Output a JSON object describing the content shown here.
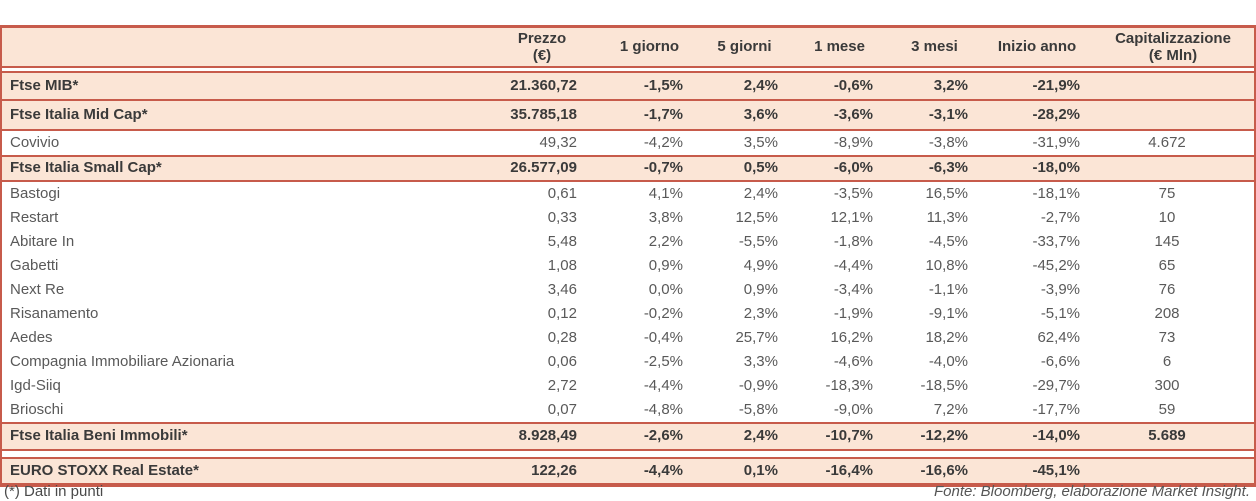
{
  "colors": {
    "accent_red": "#C75B4B",
    "row_highlight": "#FBE5D6",
    "text_dark": "#3A3A3A",
    "text_gray": "#595959"
  },
  "table": {
    "header": {
      "prezzo_line1": "Prezzo",
      "prezzo_line2": "(€)",
      "d1": "1 giorno",
      "d5": "5 giorni",
      "m1": "1 mese",
      "m3": "3 mesi",
      "ytd": "Inizio anno",
      "cap_line1": "Capitalizzazione",
      "cap_line2": "(€ Mln)"
    },
    "rows": [
      {
        "type": "index",
        "name": "Ftse MIB*",
        "prezzo": "21.360,72",
        "d1": "-1,5%",
        "d5": "2,4%",
        "m1": "-0,6%",
        "m3": "3,2%",
        "ytd": "-21,9%",
        "cap": ""
      },
      {
        "type": "index",
        "name": "Ftse Italia Mid Cap*",
        "prezzo": "35.785,18",
        "d1": "-1,7%",
        "d5": "3,6%",
        "m1": "-3,6%",
        "m3": "-3,1%",
        "ytd": "-28,2%",
        "cap": ""
      },
      {
        "type": "stock",
        "name": "Covivio",
        "prezzo": "49,32",
        "d1": "-4,2%",
        "d5": "3,5%",
        "m1": "-8,9%",
        "m3": "-3,8%",
        "ytd": "-31,9%",
        "cap": "4.672"
      },
      {
        "type": "index",
        "name": "Ftse Italia Small Cap*",
        "prezzo": "26.577,09",
        "d1": "-0,7%",
        "d5": "0,5%",
        "m1": "-6,0%",
        "m3": "-6,3%",
        "ytd": "-18,0%",
        "cap": ""
      },
      {
        "type": "stock",
        "name": "Bastogi",
        "prezzo": "0,61",
        "d1": "4,1%",
        "d5": "2,4%",
        "m1": "-3,5%",
        "m3": "16,5%",
        "ytd": "-18,1%",
        "cap": "75"
      },
      {
        "type": "stock",
        "name": "Restart",
        "prezzo": "0,33",
        "d1": "3,8%",
        "d5": "12,5%",
        "m1": "12,1%",
        "m3": "11,3%",
        "ytd": "-2,7%",
        "cap": "10"
      },
      {
        "type": "stock",
        "name": "Abitare In",
        "prezzo": "5,48",
        "d1": "2,2%",
        "d5": "-5,5%",
        "m1": "-1,8%",
        "m3": "-4,5%",
        "ytd": "-33,7%",
        "cap": "145"
      },
      {
        "type": "stock",
        "name": "Gabetti",
        "prezzo": "1,08",
        "d1": "0,9%",
        "d5": "4,9%",
        "m1": "-4,4%",
        "m3": "10,8%",
        "ytd": "-45,2%",
        "cap": "65"
      },
      {
        "type": "stock",
        "name": "Next Re",
        "prezzo": "3,46",
        "d1": "0,0%",
        "d5": "0,9%",
        "m1": "-3,4%",
        "m3": "-1,1%",
        "ytd": "-3,9%",
        "cap": "76"
      },
      {
        "type": "stock",
        "name": "Risanamento",
        "prezzo": "0,12",
        "d1": "-0,2%",
        "d5": "2,3%",
        "m1": "-1,9%",
        "m3": "-9,1%",
        "ytd": "-5,1%",
        "cap": "208"
      },
      {
        "type": "stock",
        "name": "Aedes",
        "prezzo": "0,28",
        "d1": "-0,4%",
        "d5": "25,7%",
        "m1": "16,2%",
        "m3": "18,2%",
        "ytd": "62,4%",
        "cap": "73"
      },
      {
        "type": "stock",
        "name": "Compagnia Immobiliare Azionaria",
        "prezzo": "0,06",
        "d1": "-2,5%",
        "d5": "3,3%",
        "m1": "-4,6%",
        "m3": "-4,0%",
        "ytd": "-6,6%",
        "cap": "6"
      },
      {
        "type": "stock",
        "name": "Igd-Siiq",
        "prezzo": "2,72",
        "d1": "-4,4%",
        "d5": "-0,9%",
        "m1": "-18,3%",
        "m3": "-18,5%",
        "ytd": "-29,7%",
        "cap": "300"
      },
      {
        "type": "stock",
        "name": "Brioschi",
        "prezzo": "0,07",
        "d1": "-4,8%",
        "d5": "-5,8%",
        "m1": "-9,0%",
        "m3": "7,2%",
        "ytd": "-17,7%",
        "cap": "59"
      },
      {
        "type": "index",
        "name": "Ftse Italia Beni Immobili*",
        "prezzo": "8.928,49",
        "d1": "-2,6%",
        "d5": "2,4%",
        "m1": "-10,7%",
        "m3": "-12,2%",
        "ytd": "-14,0%",
        "cap": "5.689"
      },
      {
        "type": "index",
        "name": "EURO STOXX Real Estate*",
        "prezzo": "122,26",
        "d1": "-4,4%",
        "d5": "0,1%",
        "m1": "-16,4%",
        "m3": "-16,6%",
        "ytd": "-45,1%",
        "cap": ""
      }
    ]
  },
  "footer": {
    "note": "(*) Dati in punti",
    "source": "Fonte: Bloomberg, elaborazione Market Insight."
  }
}
